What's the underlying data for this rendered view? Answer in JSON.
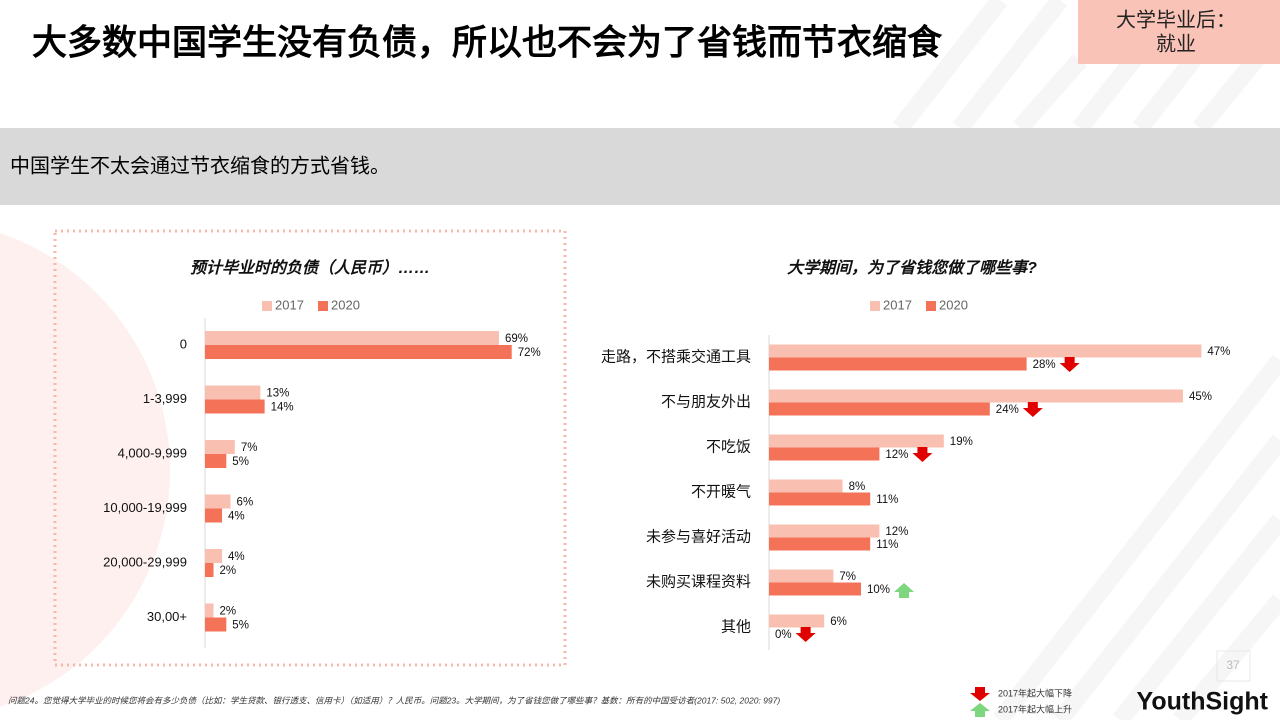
{
  "header": {
    "title": "大多数中国学生没有负债，所以也不会为了省钱而节衣缩食",
    "tag": [
      "大学毕业后：",
      "就业"
    ]
  },
  "subtitle": "中国学生不太会通过节衣缩食的方式省钱。",
  "chart_data": [
    {
      "type": "bar",
      "orientation": "horizontal",
      "title": "预计毕业时的负债（人民币）……",
      "categories": [
        "0",
        "1-3,999",
        "4,000-9,999",
        "10,000-19,999",
        "20,000-29,999",
        "30,00+"
      ],
      "series": [
        {
          "name": "2017",
          "color": "#f9c0b2",
          "values": [
            69,
            13,
            7,
            6,
            4,
            2
          ],
          "value_labels": [
            "69%",
            "13%",
            "7%",
            "6%",
            "4%",
            "2%"
          ]
        },
        {
          "name": "2020",
          "color": "#f47358",
          "values": [
            72,
            14,
            5,
            4,
            2,
            5
          ],
          "value_labels": [
            "72%",
            "14%",
            "5%",
            "4%",
            "2%",
            "5%"
          ]
        }
      ],
      "legend": "top"
    },
    {
      "type": "bar",
      "orientation": "horizontal",
      "title": "大学期间，为了省钱您做了哪些事?",
      "categories": [
        "走路，不搭乘交通工具",
        "不与朋友外出",
        "不吃饭",
        "不开暖气",
        "未参与喜好活动",
        "未购买课程资料",
        "其他"
      ],
      "series": [
        {
          "name": "2017",
          "color": "#f9c0b2",
          "values": [
            47,
            45,
            19,
            8,
            12,
            7,
            6
          ],
          "value_labels": [
            "47%",
            "45%",
            "19%",
            "8%",
            "12%",
            "7%",
            "6%"
          ]
        },
        {
          "name": "2020",
          "color": "#f47358",
          "values": [
            28,
            24,
            12,
            11,
            11,
            10,
            0
          ],
          "value_labels": [
            "28%",
            "24%",
            "12%",
            "11%",
            "11%",
            "10%",
            "0%"
          ],
          "change_markers": [
            "down",
            "down",
            "down",
            null,
            null,
            "up",
            "down"
          ]
        }
      ],
      "legend": "top"
    }
  ],
  "footnote": "问题24。您觉得大学毕业的时候您将会有多少负债（比如：学生贷款、银行透支、信用卡）（如适用）？人民币。问题23。大学期间，为了省钱您做了哪些事？基数：所有的中国受访者(2017: 502, 2020: 997)",
  "change_legend": {
    "down": "2017年起大幅下降",
    "up": "2017年起大幅上升"
  },
  "logo": "YouthSight",
  "page_number": 37
}
